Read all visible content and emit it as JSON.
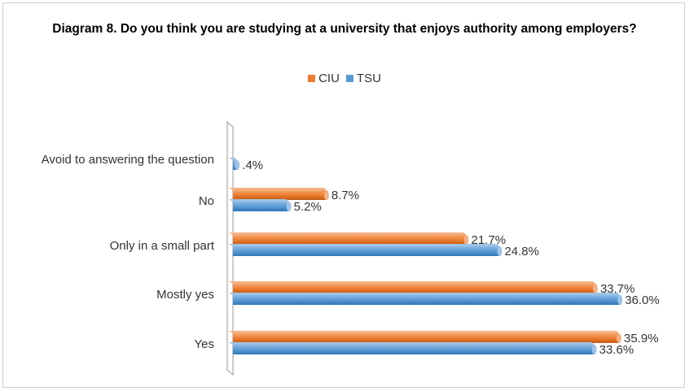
{
  "chart_data": {
    "type": "bar",
    "orientation": "horizontal",
    "title": "Diagram 8. Do you think you are studying at a university that enjoys authority among employers?",
    "categories": [
      "Avoid to answering the question",
      "No",
      "Only in a small part",
      "Mostly yes",
      "Yes"
    ],
    "series": [
      {
        "name": "CIU",
        "color": "#ED7D31",
        "values": [
          null,
          8.7,
          21.7,
          33.7,
          35.9
        ],
        "labels": [
          "",
          "8.7%",
          "21.7%",
          "33.7%",
          "35.9%"
        ]
      },
      {
        "name": "TSU",
        "color": "#5B9BD5",
        "values": [
          0.4,
          5.2,
          24.8,
          36.0,
          33.6
        ],
        "labels": [
          ".4%",
          "5.2%",
          "24.8%",
          "36.0%",
          "33.6%"
        ]
      }
    ],
    "xlim": [
      0,
      40
    ],
    "legend_position": "top",
    "grid": false
  }
}
